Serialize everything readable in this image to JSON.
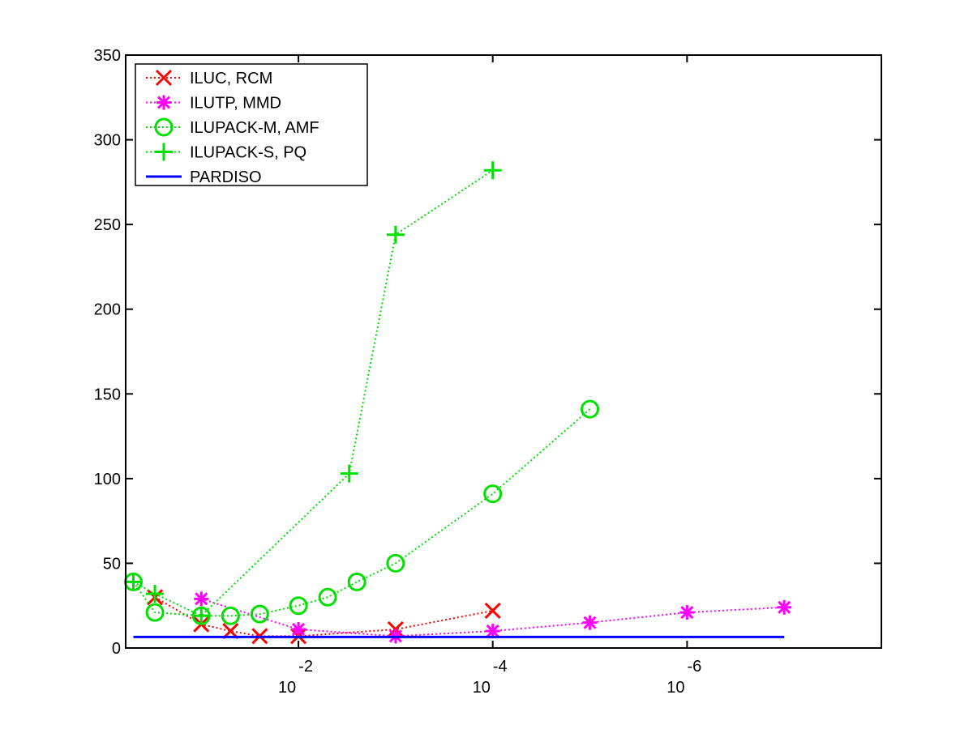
{
  "chart_data": {
    "type": "line",
    "title": "",
    "xlabel": "",
    "ylabel": "",
    "x_scale": "log",
    "x_direction": "descending",
    "xlim": [
      0.6,
      1e-08
    ],
    "ylim": [
      0,
      350
    ],
    "grid": false,
    "legend_position": "top-left",
    "y_ticks": [
      0,
      50,
      100,
      150,
      200,
      250,
      300,
      350
    ],
    "x_ticks": [
      {
        "value": 0.01,
        "base": "10",
        "exponent": "-2"
      },
      {
        "value": 0.0001,
        "base": "10",
        "exponent": "-4"
      },
      {
        "value": 1e-06,
        "base": "10",
        "exponent": "-6"
      }
    ],
    "series": [
      {
        "name": "ILUC, RCM",
        "color": "#ff0000",
        "marker": "x",
        "line": "dotted",
        "points": [
          [
            0.3,
            30
          ],
          [
            0.1,
            14
          ],
          [
            0.05,
            10
          ],
          [
            0.025,
            7
          ],
          [
            0.01,
            7
          ],
          [
            0.001,
            11
          ],
          [
            0.0001,
            22
          ]
        ]
      },
      {
        "name": "ILUTP, MMD",
        "color": "#ff00ff",
        "marker": "asterisk",
        "line": "dotted",
        "points": [
          [
            0.1,
            29
          ],
          [
            0.01,
            11
          ],
          [
            0.001,
            7
          ],
          [
            0.0001,
            10
          ],
          [
            1e-05,
            15
          ],
          [
            1e-06,
            21
          ],
          [
            1e-07,
            24
          ]
        ]
      },
      {
        "name": "ILUPACK-M, AMF",
        "color": "#00e000",
        "marker": "circle",
        "line": "dotted",
        "points": [
          [
            0.5,
            39
          ],
          [
            0.3,
            21
          ],
          [
            0.1,
            19
          ],
          [
            0.05,
            19
          ],
          [
            0.025,
            20
          ],
          [
            0.01,
            25
          ],
          [
            0.005,
            30
          ],
          [
            0.0025,
            39
          ],
          [
            0.001,
            50
          ],
          [
            0.0001,
            91
          ],
          [
            1e-05,
            141
          ]
        ]
      },
      {
        "name": "ILUPACK-S, PQ",
        "color": "#00e000",
        "marker": "plus",
        "line": "dotted",
        "points": [
          [
            0.5,
            39
          ],
          [
            0.3,
            32
          ],
          [
            0.1,
            19
          ],
          [
            0.003,
            103
          ],
          [
            0.001,
            244
          ],
          [
            0.0001,
            282
          ]
        ]
      },
      {
        "name": "PARDISO",
        "color": "#0000ff",
        "marker": "none",
        "line": "solid",
        "points": [
          [
            0.5,
            6.5
          ],
          [
            1e-07,
            6.5
          ]
        ]
      }
    ]
  }
}
